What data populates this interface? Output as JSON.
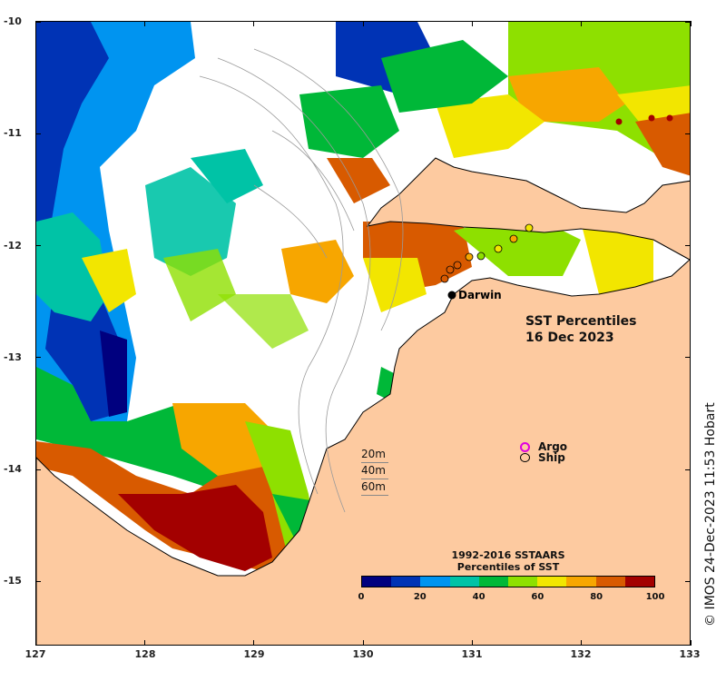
{
  "title": {
    "line1": "SST Percentiles",
    "line2": "16 Dec 2023"
  },
  "credit": "© IMOS 24-Dec-2023 11:53 Hobart",
  "place_label": "Darwin",
  "axes": {
    "x_ticks": [
      "127",
      "128",
      "129",
      "130",
      "131",
      "132",
      "133"
    ],
    "y_ticks": [
      "-10",
      "-11",
      "-12",
      "-13",
      "-14",
      "-15"
    ],
    "x_range": [
      127,
      133
    ],
    "y_range": [
      -10,
      -15.55
    ]
  },
  "depth_legend": [
    "20m",
    "40m",
    "60m"
  ],
  "symbol_legend": {
    "argo": "Argo",
    "ship": "Ship",
    "argo_symbol": "o"
  },
  "colorbar": {
    "title_line1": "1992-2016 SSTAARS",
    "title_line2": "Percentiles of SST",
    "ticks": [
      "0",
      "20",
      "40",
      "60",
      "80",
      "100"
    ],
    "colors": [
      "#00007f",
      "#0033b5",
      "#0094f0",
      "#00c3a6",
      "#00b838",
      "#8ee000",
      "#f2e600",
      "#f7a600",
      "#d85a00",
      "#a30000"
    ]
  },
  "colors": {
    "land": "#fdcaa0",
    "no_data": "#ffffff",
    "coast": "#000000",
    "isobath": "#9a9a9a"
  }
}
